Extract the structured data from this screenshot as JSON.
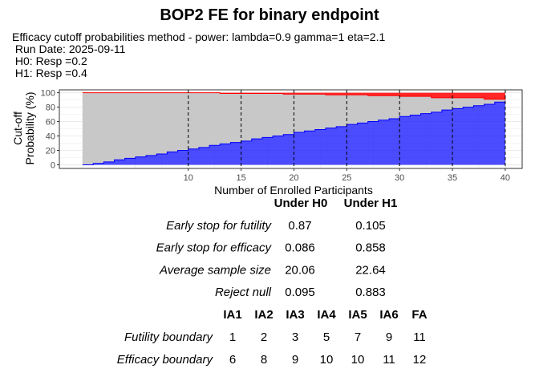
{
  "chart_data": {
    "type": "area",
    "title": "BOP2 FE for binary endpoint",
    "subtitle": [
      "Efficacy cutoff probabilities method - power: lambda=0.9 gamma=1 eta=2.1",
      " Run Date: 2025-09-11",
      " H0: Resp =0.2",
      " H1: Resp =0.4"
    ],
    "xlabel": "Number of Enrolled Participants",
    "ylabel": [
      "Cut-off",
      "Probability (%)"
    ],
    "x_ticks": [
      10,
      15,
      20,
      25,
      30,
      35,
      40
    ],
    "y_ticks": [
      0,
      20,
      40,
      60,
      80,
      100
    ],
    "xlim": [
      -2.2,
      41.6
    ],
    "ylim": [
      -5,
      104
    ],
    "grid": true,
    "interim_lines": [
      10,
      15,
      20,
      25,
      30,
      35,
      40
    ],
    "x": [
      0,
      1,
      2,
      3,
      4,
      5,
      6,
      7,
      8,
      9,
      10,
      11,
      12,
      13,
      14,
      15,
      16,
      17,
      18,
      19,
      20,
      21,
      22,
      23,
      24,
      25,
      26,
      27,
      28,
      29,
      30,
      31,
      32,
      33,
      34,
      35,
      36,
      37,
      38,
      39,
      40
    ],
    "series": [
      {
        "role": "futility",
        "color": "#0000FF",
        "values": [
          0,
          2,
          4,
          7,
          9,
          11,
          13,
          15,
          18,
          20,
          22,
          24,
          27,
          29,
          31,
          33,
          36,
          38,
          40,
          42,
          45,
          47,
          49,
          51,
          53,
          56,
          58,
          60,
          62,
          64,
          67,
          69,
          71,
          73,
          76,
          78,
          80,
          82,
          84,
          87,
          89
        ]
      },
      {
        "role": "efficacy",
        "color": "#FF0000",
        "values": [
          100,
          100,
          100,
          100,
          100,
          100,
          100,
          100,
          100,
          100,
          100,
          100,
          100,
          99,
          99,
          99,
          99,
          99,
          99,
          98,
          98,
          98,
          98,
          97,
          97,
          97,
          97,
          96,
          96,
          96,
          95,
          95,
          95,
          93,
          93,
          93,
          93,
          93,
          91,
          91,
          90
        ]
      }
    ],
    "middle_color": "#C8C8C8"
  },
  "summary_table": {
    "headers": [
      "Under H0",
      "Under H1"
    ],
    "rows": [
      {
        "label": "Early stop for futility",
        "h0": "0.87",
        "h1": "0.105"
      },
      {
        "label": "Early stop for efficacy",
        "h0": "0.086",
        "h1": "0.858"
      },
      {
        "label": "Average sample size",
        "h0": "20.06",
        "h1": "22.64"
      },
      {
        "label": "Reject null",
        "h0": "0.095",
        "h1": "0.883"
      }
    ]
  },
  "boundary_table": {
    "headers": [
      "IA1",
      "IA2",
      "IA3",
      "IA4",
      "IA5",
      "IA6",
      "FA"
    ],
    "rows": [
      {
        "label": "Futility boundary",
        "values": [
          "1",
          "2",
          "3",
          "5",
          "7",
          "9",
          "11"
        ]
      },
      {
        "label": "Efficacy boundary",
        "values": [
          "6",
          "8",
          "9",
          "10",
          "10",
          "11",
          "12"
        ]
      }
    ]
  }
}
